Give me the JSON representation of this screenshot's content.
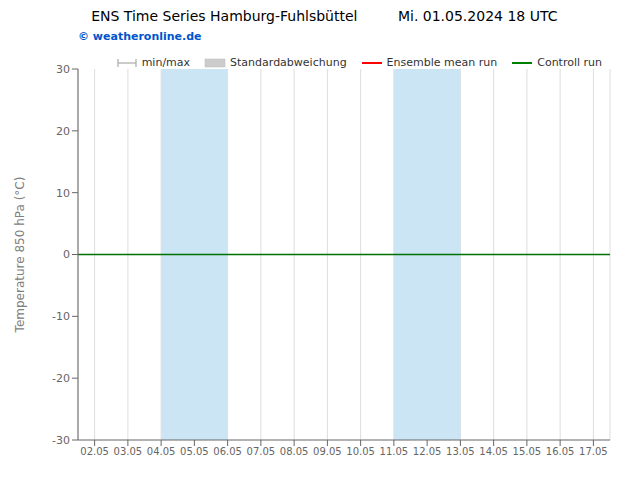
{
  "chart_data": {
    "type": "line",
    "title": "ENS Time Series Hamburg-Fuhlsbüttel",
    "subtitle": "Mi. 01.05.2024 18 UTC",
    "y_label": "Temperature 850 hPa (°C)",
    "categories": [
      "02.05",
      "03.05",
      "04.05",
      "05.05",
      "06.05",
      "07.05",
      "08.05",
      "09.05",
      "10.05",
      "11.05",
      "12.05",
      "13.05",
      "14.05",
      "15.05",
      "16.05",
      "17.05"
    ],
    "series": [
      {
        "name": "min/max",
        "color": "#aaaaaa",
        "type": "range",
        "values": [
          null,
          null,
          null,
          null,
          null,
          null,
          null,
          null,
          null,
          null,
          null,
          null,
          null,
          null,
          null,
          null
        ]
      },
      {
        "name": "Standardabweichung",
        "color": "#cccccc",
        "type": "bar",
        "values": [
          null,
          null,
          null,
          null,
          null,
          null,
          null,
          null,
          null,
          null,
          null,
          null,
          null,
          null,
          null,
          null
        ]
      },
      {
        "name": "Ensemble mean run",
        "color": "#ff0000",
        "type": "line",
        "values": [
          null,
          null,
          null,
          null,
          null,
          null,
          null,
          null,
          null,
          null,
          null,
          null,
          null,
          null,
          null,
          null
        ]
      },
      {
        "name": "Controll run",
        "color": "#008000",
        "type": "line",
        "values": [
          null,
          null,
          null,
          null,
          null,
          null,
          null,
          null,
          null,
          null,
          null,
          null,
          null,
          null,
          null,
          null
        ]
      }
    ],
    "ylim": [
      -30,
      30
    ],
    "yticks": [
      -30,
      -20,
      -10,
      0,
      10,
      20,
      30
    ],
    "shaded_regions": [
      {
        "from": "04.05",
        "to": "06.05",
        "color": "#cce5f5"
      },
      {
        "from": "11.05",
        "to": "13.05",
        "color": "#cce5f5"
      }
    ],
    "hline": {
      "y": 0,
      "color": "#007000"
    },
    "annotations": [
      {
        "text": "© weatheronline.de",
        "color": "#0055cc"
      }
    ],
    "grid": "x",
    "legend": "top-right"
  }
}
